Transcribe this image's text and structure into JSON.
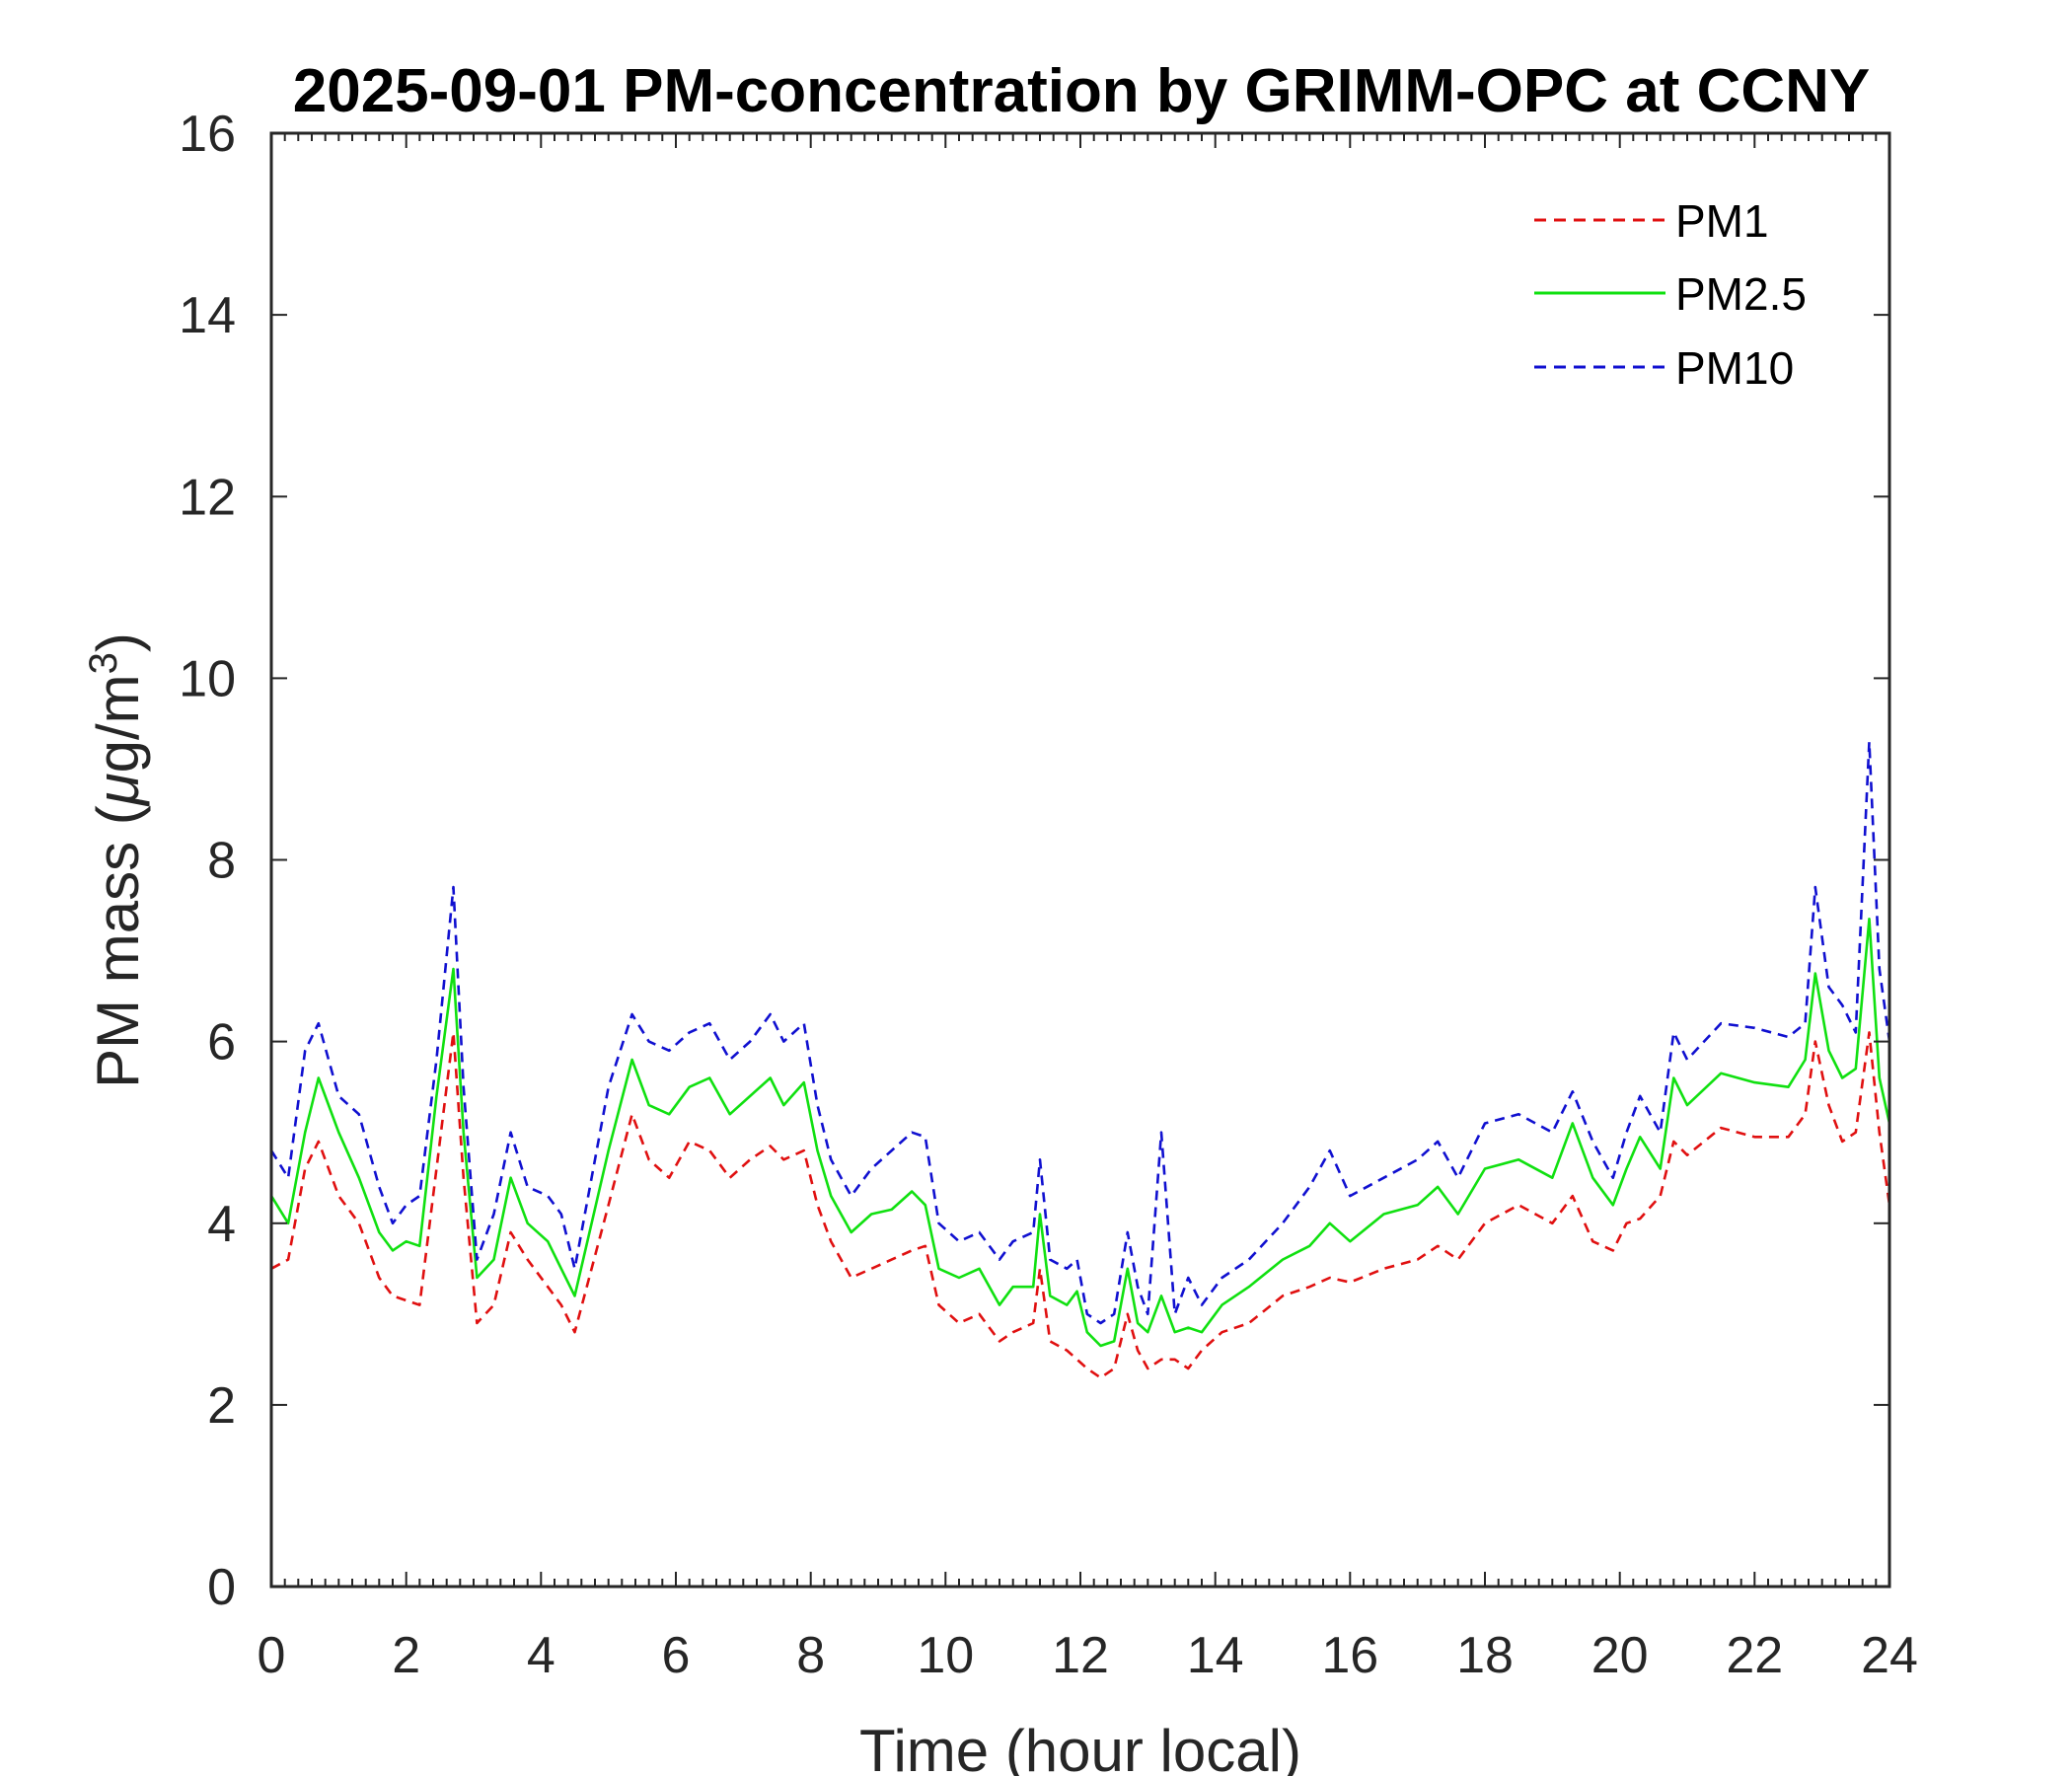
{
  "colors": {
    "pm1": "#e01010",
    "pm25": "#10e010",
    "pm10": "#1010d0",
    "axis": "#262626",
    "background": "#ffffff"
  },
  "chart_data": {
    "type": "line",
    "title": "2025-09-01 PM-concentration by GRIMM-OPC at CCNY",
    "xlabel": "Time (hour local)",
    "ylabel_prefix": "PM mass (",
    "ylabel_mu": "μ",
    "ylabel_mid": "g/m",
    "ylabel_sup": "3",
    "ylabel_suffix": ")",
    "xlim": [
      0,
      24
    ],
    "ylim": [
      0,
      16
    ],
    "xticks": [
      "0",
      "2",
      "4",
      "6",
      "8",
      "10",
      "12",
      "14",
      "16",
      "18",
      "20",
      "22",
      "24"
    ],
    "yticks": [
      "0",
      "2",
      "4",
      "6",
      "8",
      "10",
      "12",
      "14",
      "16"
    ],
    "grid": false,
    "legend_position": "top-right",
    "x": [
      0.0,
      0.25,
      0.5,
      0.7,
      1.0,
      1.3,
      1.6,
      1.8,
      2.0,
      2.2,
      2.45,
      2.7,
      2.85,
      3.05,
      3.3,
      3.55,
      3.8,
      4.1,
      4.3,
      4.5,
      4.75,
      5.0,
      5.35,
      5.6,
      5.9,
      6.2,
      6.5,
      6.8,
      7.1,
      7.4,
      7.6,
      7.9,
      8.1,
      8.3,
      8.6,
      8.9,
      9.2,
      9.5,
      9.7,
      9.9,
      10.2,
      10.5,
      10.8,
      11.0,
      11.3,
      11.4,
      11.55,
      11.8,
      11.95,
      12.1,
      12.3,
      12.5,
      12.7,
      12.85,
      13.0,
      13.2,
      13.4,
      13.6,
      13.8,
      14.1,
      14.5,
      15.0,
      15.4,
      15.7,
      16.0,
      16.5,
      17.0,
      17.3,
      17.6,
      18.0,
      18.5,
      19.0,
      19.3,
      19.6,
      19.9,
      20.1,
      20.3,
      20.6,
      20.8,
      21.0,
      21.5,
      22.0,
      22.5,
      22.75,
      22.9,
      23.1,
      23.3,
      23.5,
      23.7,
      23.85,
      24.0
    ],
    "series": [
      {
        "name": "PM1",
        "style": "dashed",
        "values": [
          3.5,
          3.6,
          4.6,
          4.9,
          4.3,
          4.0,
          3.4,
          3.2,
          3.15,
          3.1,
          4.6,
          6.1,
          4.5,
          2.9,
          3.1,
          3.9,
          3.6,
          3.3,
          3.1,
          2.8,
          3.5,
          4.2,
          5.2,
          4.7,
          4.5,
          4.9,
          4.8,
          4.5,
          4.7,
          4.85,
          4.7,
          4.8,
          4.2,
          3.8,
          3.4,
          3.5,
          3.6,
          3.7,
          3.75,
          3.1,
          2.9,
          3.0,
          2.7,
          2.8,
          2.9,
          3.5,
          2.7,
          2.6,
          2.5,
          2.4,
          2.3,
          2.4,
          3.0,
          2.6,
          2.4,
          2.5,
          2.5,
          2.4,
          2.6,
          2.8,
          2.9,
          3.2,
          3.3,
          3.4,
          3.35,
          3.5,
          3.6,
          3.75,
          3.6,
          4.0,
          4.2,
          4.0,
          4.3,
          3.8,
          3.7,
          4.0,
          4.05,
          4.3,
          4.9,
          4.75,
          5.05,
          4.95,
          4.95,
          5.2,
          6.0,
          5.3,
          4.9,
          5.0,
          6.1,
          5.0,
          4.2
        ]
      },
      {
        "name": "PM2.5",
        "style": "solid",
        "values": [
          4.3,
          4.0,
          5.0,
          5.6,
          5.0,
          4.5,
          3.9,
          3.7,
          3.8,
          3.75,
          5.4,
          6.8,
          5.0,
          3.4,
          3.6,
          4.5,
          4.0,
          3.8,
          3.5,
          3.2,
          4.0,
          4.8,
          5.8,
          5.3,
          5.2,
          5.5,
          5.6,
          5.2,
          5.4,
          5.6,
          5.3,
          5.55,
          4.8,
          4.3,
          3.9,
          4.1,
          4.15,
          4.35,
          4.2,
          3.5,
          3.4,
          3.5,
          3.1,
          3.3,
          3.3,
          4.1,
          3.2,
          3.1,
          3.25,
          2.8,
          2.65,
          2.7,
          3.5,
          2.9,
          2.8,
          3.2,
          2.8,
          2.85,
          2.8,
          3.1,
          3.3,
          3.6,
          3.75,
          4.0,
          3.8,
          4.1,
          4.2,
          4.4,
          4.1,
          4.6,
          4.7,
          4.5,
          5.1,
          4.5,
          4.2,
          4.6,
          4.95,
          4.6,
          5.6,
          5.3,
          5.65,
          5.55,
          5.5,
          5.8,
          6.75,
          5.9,
          5.6,
          5.7,
          7.35,
          5.6,
          5.1
        ]
      },
      {
        "name": "PM10",
        "style": "dashed",
        "values": [
          4.8,
          4.5,
          5.9,
          6.2,
          5.4,
          5.2,
          4.4,
          4.0,
          4.2,
          4.3,
          5.8,
          7.7,
          5.5,
          3.6,
          4.1,
          5.0,
          4.4,
          4.3,
          4.1,
          3.5,
          4.5,
          5.5,
          6.3,
          6.0,
          5.9,
          6.1,
          6.2,
          5.8,
          6.0,
          6.3,
          6.0,
          6.2,
          5.3,
          4.7,
          4.3,
          4.6,
          4.8,
          5.0,
          4.95,
          4.0,
          3.8,
          3.9,
          3.6,
          3.8,
          3.9,
          4.7,
          3.6,
          3.5,
          3.6,
          3.0,
          2.9,
          3.0,
          3.9,
          3.3,
          3.0,
          5.0,
          3.0,
          3.4,
          3.1,
          3.4,
          3.6,
          4.0,
          4.4,
          4.8,
          4.3,
          4.5,
          4.7,
          4.9,
          4.5,
          5.1,
          5.2,
          5.0,
          5.45,
          4.9,
          4.5,
          5.0,
          5.4,
          5.0,
          6.1,
          5.8,
          6.2,
          6.15,
          6.05,
          6.2,
          7.7,
          6.6,
          6.4,
          6.1,
          9.3,
          6.8,
          6.0
        ]
      }
    ]
  }
}
